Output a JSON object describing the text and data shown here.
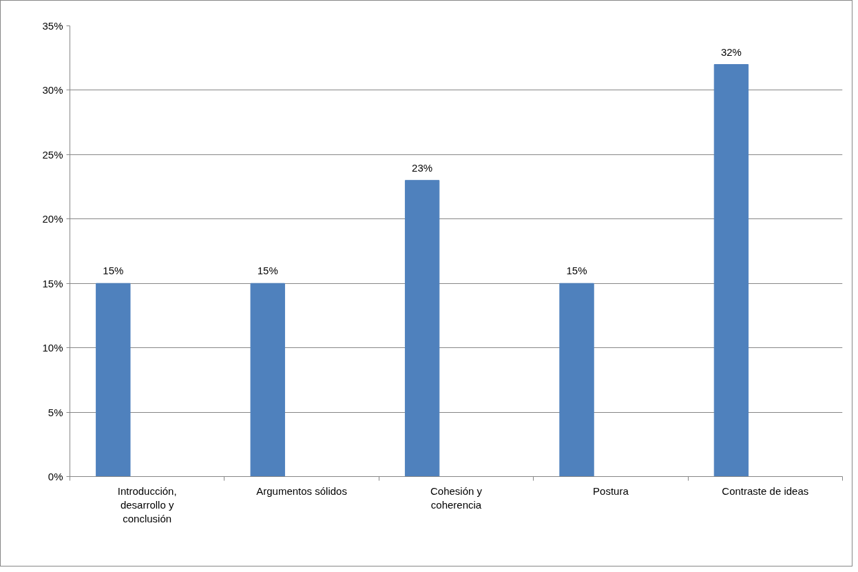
{
  "chart_data": {
    "type": "bar",
    "categories": [
      "Introducción, desarrollo y conclusión",
      "Argumentos sólidos",
      "Cohesión y coherencia",
      "Postura",
      "Contraste de ideas"
    ],
    "values": [
      15,
      15,
      23,
      15,
      32
    ],
    "value_labels": [
      "15%",
      "15%",
      "23%",
      "15%",
      "32%"
    ],
    "color": "#4f81bd",
    "ylim": [
      0,
      35
    ],
    "yticks": [
      {
        "value": 0,
        "label": "0%"
      },
      {
        "value": 5,
        "label": "5%"
      },
      {
        "value": 10,
        "label": "10%"
      },
      {
        "value": 15,
        "label": "15%"
      },
      {
        "value": 20,
        "label": "20%"
      },
      {
        "value": 25,
        "label": "25%"
      },
      {
        "value": 30,
        "label": "30%"
      },
      {
        "value": 35,
        "label": "35%"
      }
    ],
    "grid": "y"
  }
}
